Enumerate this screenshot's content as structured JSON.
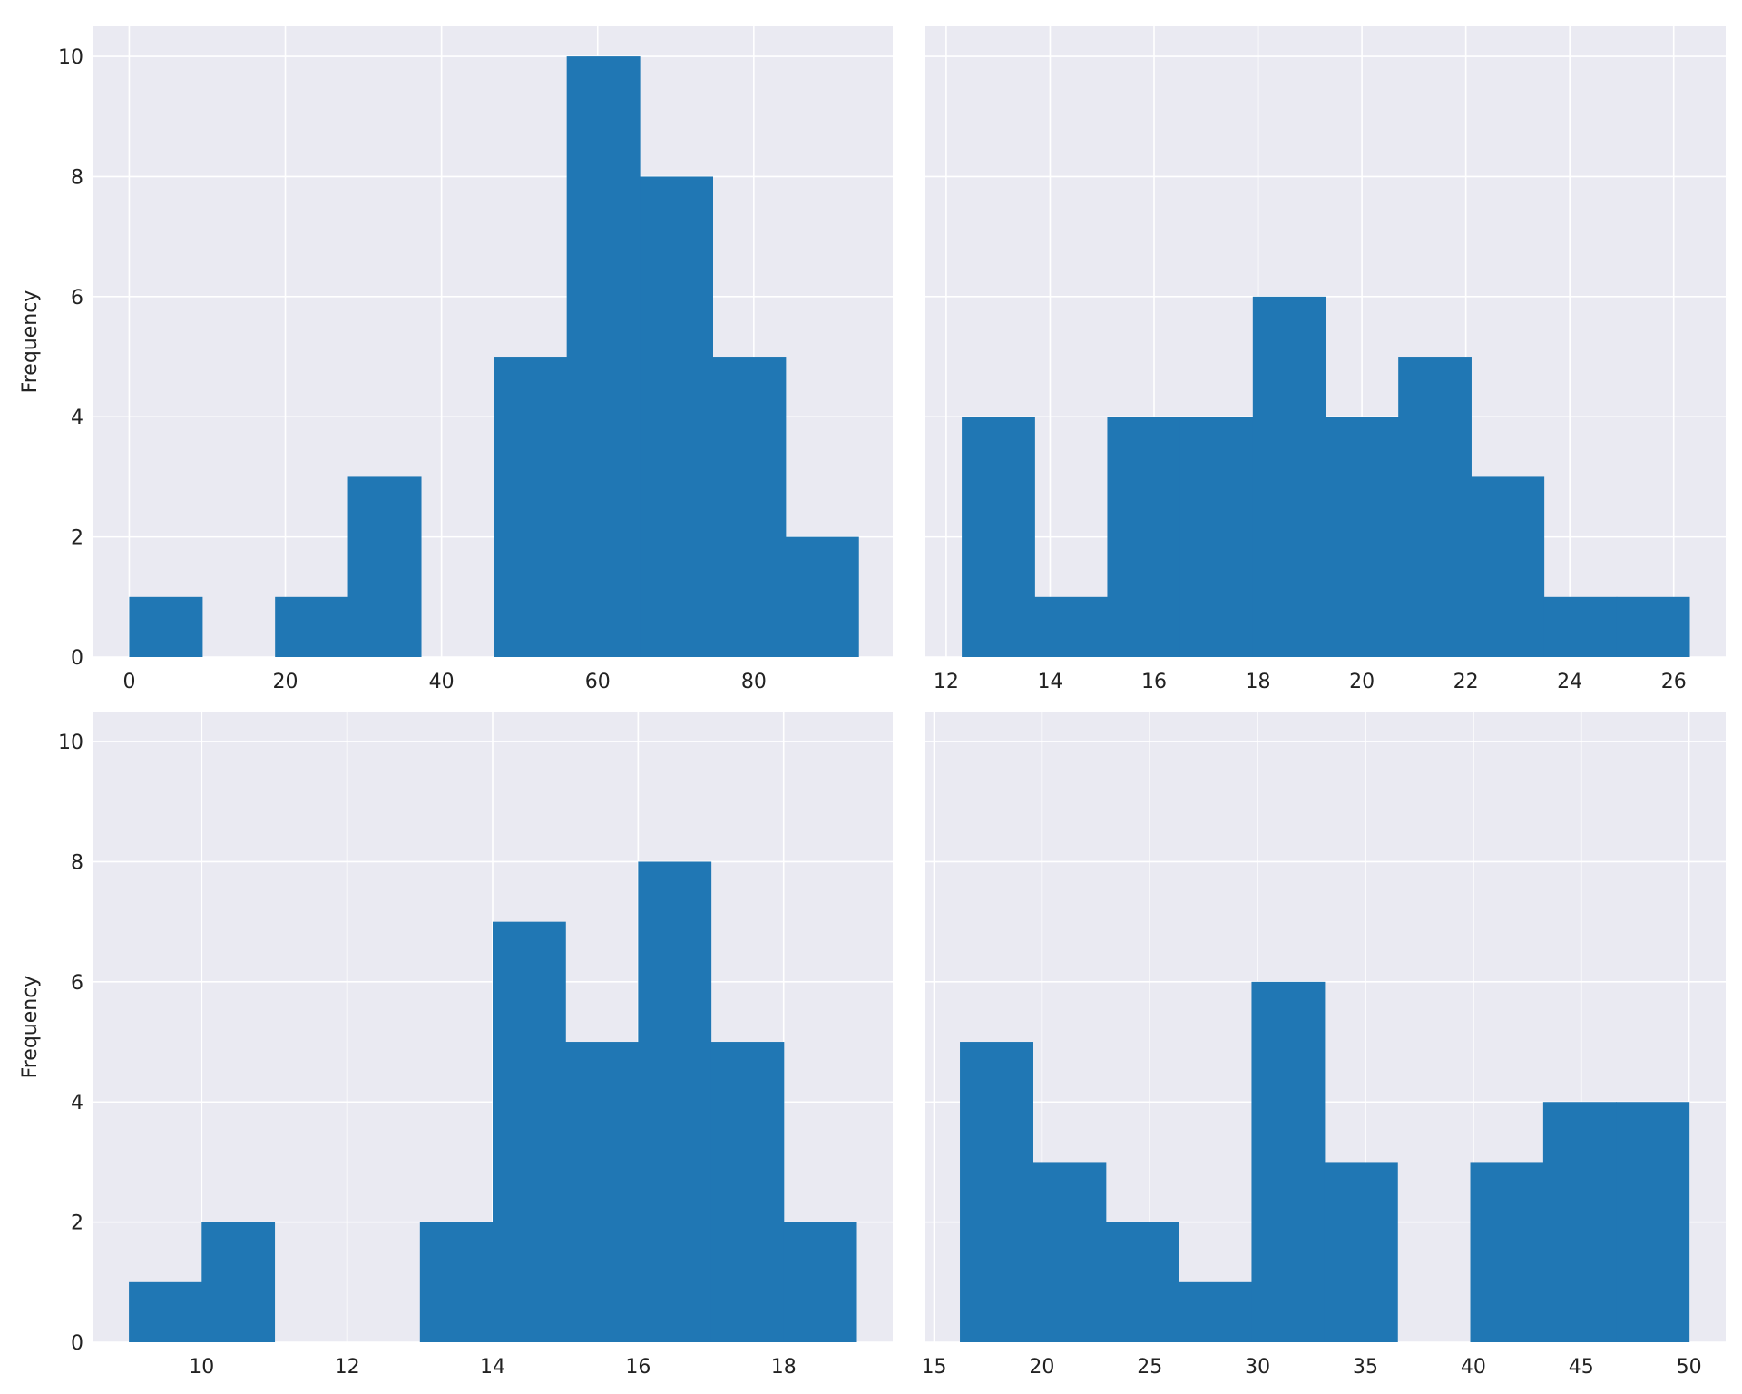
{
  "colors": {
    "bar": "#2077b4",
    "panel_background": "#eaeaf2",
    "grid": "#ffffff",
    "text": "#222222"
  },
  "chart_data": [
    {
      "type": "bar",
      "subtype": "histogram",
      "title": "",
      "xlabel": "",
      "ylabel": "Frequency",
      "grid": true,
      "xlim": [
        -4.7,
        97.8
      ],
      "ylim": [
        0,
        10.5
      ],
      "xticks": [
        0,
        20,
        40,
        60,
        80
      ],
      "yticks": [
        0,
        2,
        4,
        6,
        8,
        10
      ],
      "bin_edges": [
        0,
        9.34,
        18.68,
        28.02,
        37.36,
        46.7,
        56.04,
        65.38,
        74.72,
        84.06,
        93.4
      ],
      "counts": [
        1,
        0,
        1,
        3,
        0,
        5,
        10,
        8,
        5,
        2
      ]
    },
    {
      "type": "bar",
      "subtype": "histogram",
      "title": "",
      "xlabel": "",
      "ylabel": "",
      "grid": true,
      "xlim": [
        11.6,
        27.0
      ],
      "ylim": [
        0,
        10.5
      ],
      "xticks": [
        12,
        14,
        16,
        18,
        20,
        22,
        24,
        26
      ],
      "yticks": [
        0,
        2,
        4,
        6,
        8,
        10
      ],
      "bin_edges": [
        12.3,
        13.7,
        15.1,
        16.5,
        17.9,
        19.3,
        20.7,
        22.1,
        23.5,
        24.9,
        26.3
      ],
      "counts": [
        4,
        1,
        4,
        4,
        6,
        4,
        5,
        3,
        1,
        1
      ]
    },
    {
      "type": "bar",
      "subtype": "histogram",
      "title": "",
      "xlabel": "",
      "ylabel": "Frequency",
      "grid": true,
      "xlim": [
        8.5,
        19.5
      ],
      "ylim": [
        0,
        10.5
      ],
      "xticks": [
        10,
        12,
        14,
        16,
        18
      ],
      "yticks": [
        0,
        2,
        4,
        6,
        8,
        10
      ],
      "bin_edges": [
        9,
        10,
        11,
        12,
        13,
        14,
        15,
        16,
        17,
        18,
        19
      ],
      "counts": [
        1,
        2,
        0,
        0,
        2,
        7,
        5,
        8,
        5,
        2
      ]
    },
    {
      "type": "bar",
      "subtype": "histogram",
      "title": "",
      "xlabel": "",
      "ylabel": "",
      "grid": true,
      "xlim": [
        14.6,
        51.7
      ],
      "ylim": [
        0,
        10.5
      ],
      "xticks": [
        15,
        20,
        25,
        30,
        35,
        40,
        45,
        50
      ],
      "yticks": [
        0,
        2,
        4,
        6,
        8,
        10
      ],
      "bin_edges": [
        16.2,
        19.58,
        22.96,
        26.34,
        29.72,
        33.1,
        36.48,
        39.86,
        43.24,
        46.62,
        50.0
      ],
      "counts": [
        5,
        3,
        2,
        1,
        6,
        3,
        0,
        3,
        4,
        4
      ]
    }
  ]
}
